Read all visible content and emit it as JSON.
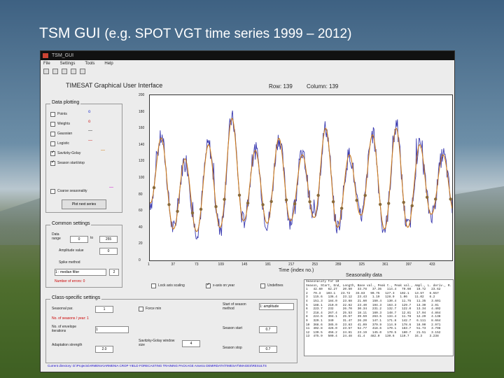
{
  "slide": {
    "title": "TSM GUI",
    "subtitle": "(e.g. SPOT VGT time series 1999 – 2012)"
  },
  "window": {
    "title": "TSM_GUI",
    "menu": [
      "File",
      "Settings",
      "Tools",
      "Help"
    ],
    "gui_title": "TIMESAT Graphical User Interface",
    "row_label": "Row: 139",
    "col_label": "Column: 139",
    "status_path": "Current directory: D:\\Projects\\ARMENIA\\ARMENIA CROP YIELD FORECASTING TRAINING PACKAGE Arsenio DEMIRDATA\\TIMESAT\\IMAGES\\RESULTS"
  },
  "data_plotting": {
    "title": "Data plotting",
    "items": [
      {
        "label": "Points",
        "checked": false,
        "mark": "o",
        "color": "#2233cc"
      },
      {
        "label": "Weights",
        "checked": false,
        "mark": "o",
        "color": "#cc2222"
      },
      {
        "label": "Gaussian",
        "checked": false,
        "mark": "—",
        "color": "#333333"
      },
      {
        "label": "Logistic",
        "checked": false,
        "mark": "—",
        "color": "#cc2222"
      },
      {
        "label": "Savitzky-Golay",
        "checked": true,
        "mark": "—",
        "color": "#cc7700"
      },
      {
        "label": "Season start/stop",
        "checked": true,
        "mark": "",
        "color": "#888888"
      }
    ],
    "coarse_label": "Coarse seasonality",
    "coarse_color": "#cc00cc",
    "plot_button": "Plot next series"
  },
  "common_settings": {
    "title": "Common settings",
    "data_range_label": "Data range",
    "range_from": "0",
    "range_to_label": "to",
    "range_to": "255",
    "amplitude_label": "Amplitude value",
    "amplitude_value": "0",
    "spike_label": "Spike method",
    "spike_value": "1 : median filter",
    "spike_num": "2",
    "num_errors_label": "Number of errors: 0"
  },
  "class_settings": {
    "title": "Class-specific settings",
    "seasonal_par_label": "Seasonal par.",
    "seasonal_par_value": "1",
    "force_min_label": "Force min",
    "start_method_label": "Start of season method",
    "start_method_value": "1: amplitude",
    "num_seasons_label": "No. of seasons / year: 1",
    "env_iter_label": "No. of envelope iterations",
    "env_iter_value": "1",
    "season_start_label": "Season start",
    "season_start_value": "0.7",
    "adapt_label": "Adaptation strength",
    "adapt_value": "2.0",
    "sg_window_label": "Savitzky-Golay window size",
    "sg_window_value": "4",
    "season_stop_label": "Season stop",
    "season_stop_value": "0.7"
  },
  "options": {
    "lock_axis": "Lock axis scaling",
    "x_axis": "x-axis on year",
    "undefines": "Undefines"
  },
  "seasonality": {
    "title": "Seasonality data",
    "header_line1": "Seasonality for 10",
    "header_line2": "Season, Start, End, Length, Base val., Peak t., Peak val., Ampl., L. deriv., R. deriv., L. integ",
    "rows": [
      "1   42.60   62.27   20.50   33.78   37.36   114.4   79.60   19.72   23.62",
      "2   79.3   103.1   23.72   33.83   90.75   127.3   102.1   13.57   6.557",
      "3   115.6   136.4   23.12   23.43   1.19   128.9   1.06    11.02   6.2",
      "4   151.3   184.0   23.68   21.60   150.4   130.4   11.75   11.35   3.601",
      "5   188.1   210.0   22.62   23.40   194.3   163.3   129.7   13.30   2.91",
      "6   223.7   232     26.70   30.34   231.2   132.7   122.0   13.34   4.402",
      "7   218.4   267.4   25.53   18.11   160.3   148.7   12.81   17.04   4.864",
      "8   224.6   304.1   25.57   39.59   263.5   134.4   11.78   12.29   4.138",
      "9   329.1   340     31.47   26.20   147.1   171.8   142.7   6.111   8.664",
      "10  368.6   385.0   23.63   41.09   379.9   114.9   178.6   18.90   2.971",
      "11  402.8   426.0   23.57   52.77   418.6   170.1   183.7   51.73   3.798",
      "12  139.5   456.2   24.61   23.19   145.0   170.5   180.7   21.51   3.152",
      "13  475.9   500.4   24.48   41.4   482.0   130.6   119.7   34.3    3.238"
    ]
  },
  "chart_data": {
    "type": "line",
    "xlabel": "Time (index no.)",
    "ylabel": "",
    "xlim": [
      1,
      465
    ],
    "ylim": [
      0,
      200
    ],
    "x_ticks": [
      1,
      37,
      73,
      109,
      145,
      181,
      217,
      253,
      289,
      325,
      361,
      397,
      433
    ],
    "y_ticks": [
      0,
      20,
      40,
      60,
      80,
      100,
      120,
      140,
      160,
      180,
      200
    ],
    "period": 36,
    "peaks": [
      148,
      123,
      140,
      172,
      133,
      148,
      128,
      160,
      128,
      152,
      160,
      140,
      128
    ],
    "troughs": [
      70,
      38,
      35,
      40,
      48,
      45,
      48,
      52,
      40,
      55,
      38,
      40,
      56
    ],
    "series": [
      {
        "name": "raw",
        "color": "#3a3ab0"
      },
      {
        "name": "Savitzky-Golay",
        "color": "#cc7a1a"
      }
    ],
    "marker_color": "#8a6a3a"
  }
}
